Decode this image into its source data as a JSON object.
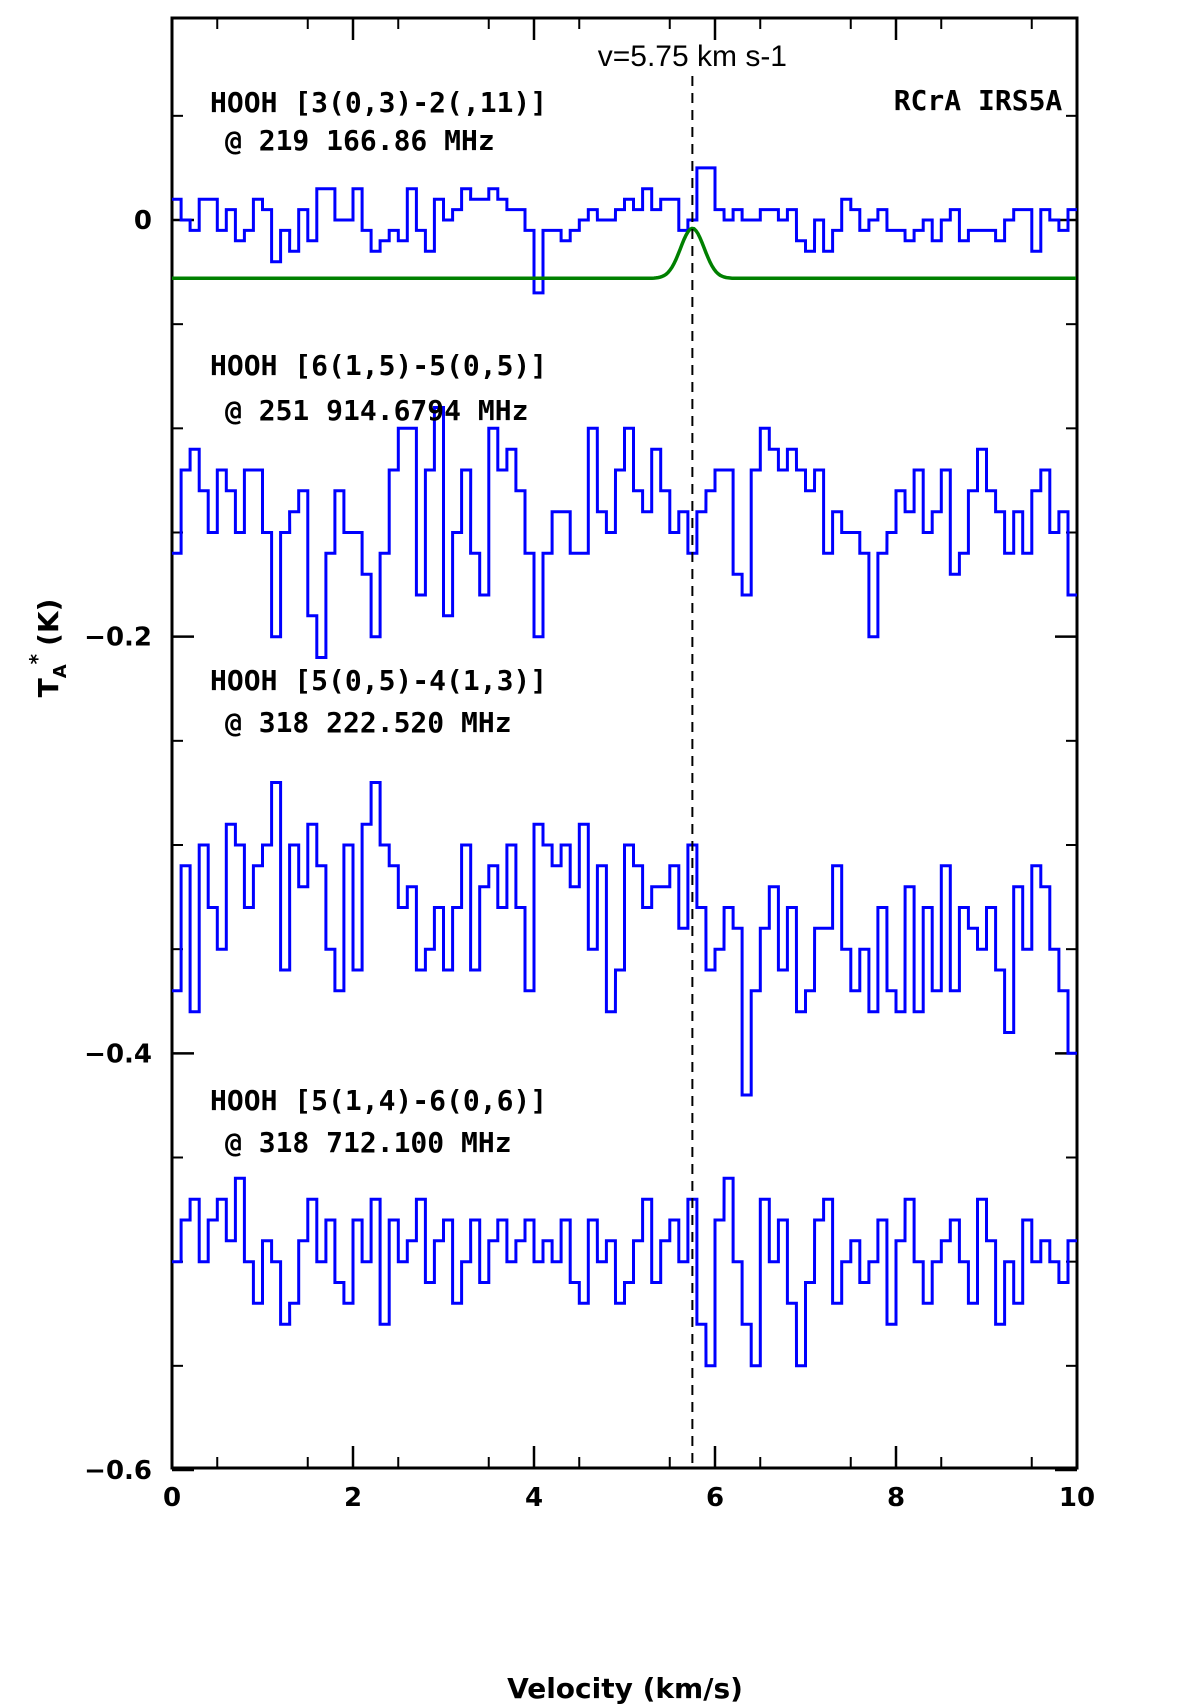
{
  "chart_data": {
    "type": "line",
    "title": "",
    "xlabel": "Velocity (km/s)",
    "ylabel": "T_A* (K)",
    "ylabel_main": "T",
    "ylabel_sub": "A",
    "ylabel_sup": "*",
    "ylabel_unit": "(K)",
    "xlim": [
      0,
      10
    ],
    "ylim": [
      -0.6,
      0.1
    ],
    "xticks": [
      0,
      2,
      4,
      6,
      8,
      10
    ],
    "xtick_labels": [
      "0",
      "2",
      "4",
      "6",
      "8",
      "10"
    ],
    "yticks": [
      0,
      -0.2,
      -0.4,
      -0.6
    ],
    "ytick_labels": [
      "0",
      "−0.2",
      "−0.4",
      "−0.6"
    ],
    "grid": false,
    "legend": "none",
    "source": "RCrA IRS5A",
    "vline": {
      "x": 5.75,
      "label": "v=5.75 km s-1"
    },
    "channel_width_kms": 0.1,
    "series": [
      {
        "label_line1": "HOOH [3(0,3)-2(,11)]",
        "label_line2": "@ 219 166.86 MHz",
        "color": "#0000ff",
        "x_start": 0.05,
        "y": [
          0.01,
          0.0,
          -0.005,
          0.01,
          0.01,
          -0.005,
          0.005,
          -0.01,
          -0.005,
          0.01,
          0.005,
          -0.02,
          -0.005,
          -0.015,
          0.005,
          -0.01,
          0.015,
          0.015,
          0.0,
          0.0,
          0.015,
          -0.005,
          -0.015,
          -0.01,
          -0.005,
          -0.01,
          0.015,
          -0.005,
          -0.015,
          0.01,
          0.0,
          0.005,
          0.015,
          0.01,
          0.01,
          0.015,
          0.01,
          0.005,
          0.005,
          -0.005,
          -0.035,
          -0.005,
          -0.005,
          -0.01,
          -0.005,
          0.0,
          0.005,
          0.0,
          0.0,
          0.005,
          0.01,
          0.005,
          0.015,
          0.005,
          0.01,
          0.01,
          -0.005,
          0.0,
          0.025,
          0.025,
          0.005,
          0.0,
          0.005,
          0.0,
          0.0,
          0.005,
          0.005,
          0.0,
          0.005,
          -0.01,
          -0.015,
          0.0,
          -0.015,
          -0.005,
          0.01,
          0.005,
          -0.005,
          0.0,
          0.005,
          -0.005,
          -0.005,
          -0.01,
          -0.005,
          0.0,
          -0.01,
          0.0,
          0.005,
          -0.01,
          -0.005,
          -0.005,
          -0.005,
          -0.01,
          0.0,
          0.005,
          0.005,
          -0.015,
          0.005,
          0.0,
          -0.005,
          0.005
        ]
      },
      {
        "label_line1": "HOOH [6(1,5)-5(0,5)]",
        "label_line2": "@ 251 914.6794 MHz",
        "color": "#0000ff",
        "x_start": 0.05,
        "y": [
          -0.16,
          -0.12,
          -0.11,
          -0.13,
          -0.15,
          -0.12,
          -0.13,
          -0.15,
          -0.12,
          -0.12,
          -0.15,
          -0.2,
          -0.15,
          -0.14,
          -0.13,
          -0.19,
          -0.21,
          -0.16,
          -0.13,
          -0.15,
          -0.15,
          -0.17,
          -0.2,
          -0.16,
          -0.12,
          -0.1,
          -0.1,
          -0.18,
          -0.12,
          -0.09,
          -0.19,
          -0.15,
          -0.12,
          -0.16,
          -0.18,
          -0.1,
          -0.12,
          -0.11,
          -0.13,
          -0.16,
          -0.2,
          -0.16,
          -0.14,
          -0.14,
          -0.16,
          -0.16,
          -0.1,
          -0.14,
          -0.15,
          -0.12,
          -0.1,
          -0.13,
          -0.14,
          -0.11,
          -0.13,
          -0.15,
          -0.14,
          -0.16,
          -0.14,
          -0.13,
          -0.12,
          -0.12,
          -0.17,
          -0.18,
          -0.12,
          -0.1,
          -0.11,
          -0.12,
          -0.11,
          -0.12,
          -0.13,
          -0.12,
          -0.16,
          -0.14,
          -0.15,
          -0.15,
          -0.16,
          -0.2,
          -0.16,
          -0.15,
          -0.13,
          -0.14,
          -0.12,
          -0.15,
          -0.14,
          -0.12,
          -0.17,
          -0.16,
          -0.13,
          -0.11,
          -0.13,
          -0.14,
          -0.16,
          -0.14,
          -0.16,
          -0.13,
          -0.12,
          -0.15,
          -0.14,
          -0.18
        ]
      },
      {
        "label_line1": "HOOH [5(0,5)-4(1,3)]",
        "label_line2": "@ 318 222.520 MHz",
        "color": "#0000ff",
        "x_start": 0.05,
        "y": [
          -0.37,
          -0.31,
          -0.38,
          -0.3,
          -0.33,
          -0.35,
          -0.29,
          -0.3,
          -0.33,
          -0.31,
          -0.3,
          -0.27,
          -0.36,
          -0.3,
          -0.32,
          -0.29,
          -0.31,
          -0.35,
          -0.37,
          -0.3,
          -0.36,
          -0.29,
          -0.27,
          -0.3,
          -0.31,
          -0.33,
          -0.32,
          -0.36,
          -0.35,
          -0.33,
          -0.36,
          -0.33,
          -0.3,
          -0.36,
          -0.32,
          -0.31,
          -0.33,
          -0.3,
          -0.33,
          -0.37,
          -0.29,
          -0.3,
          -0.31,
          -0.3,
          -0.32,
          -0.29,
          -0.35,
          -0.31,
          -0.38,
          -0.36,
          -0.3,
          -0.31,
          -0.33,
          -0.32,
          -0.32,
          -0.31,
          -0.34,
          -0.3,
          -0.33,
          -0.36,
          -0.35,
          -0.33,
          -0.34,
          -0.42,
          -0.37,
          -0.34,
          -0.32,
          -0.36,
          -0.33,
          -0.38,
          -0.37,
          -0.34,
          -0.34,
          -0.31,
          -0.35,
          -0.37,
          -0.35,
          -0.38,
          -0.33,
          -0.37,
          -0.38,
          -0.32,
          -0.38,
          -0.33,
          -0.37,
          -0.31,
          -0.37,
          -0.33,
          -0.34,
          -0.35,
          -0.33,
          -0.36,
          -0.39,
          -0.32,
          -0.35,
          -0.31,
          -0.32,
          -0.35,
          -0.37,
          -0.4
        ]
      },
      {
        "label_line1": "HOOH [5(1,4)-6(0,6)]",
        "label_line2": "@ 318 712.100 MHz",
        "color": "#0000ff",
        "x_start": 0.05,
        "y": [
          -0.5,
          -0.48,
          -0.47,
          -0.5,
          -0.48,
          -0.47,
          -0.49,
          -0.46,
          -0.5,
          -0.52,
          -0.49,
          -0.5,
          -0.53,
          -0.52,
          -0.49,
          -0.47,
          -0.5,
          -0.48,
          -0.51,
          -0.52,
          -0.48,
          -0.5,
          -0.47,
          -0.53,
          -0.48,
          -0.5,
          -0.49,
          -0.47,
          -0.51,
          -0.49,
          -0.48,
          -0.52,
          -0.5,
          -0.48,
          -0.51,
          -0.49,
          -0.48,
          -0.5,
          -0.49,
          -0.48,
          -0.5,
          -0.49,
          -0.5,
          -0.48,
          -0.51,
          -0.52,
          -0.48,
          -0.5,
          -0.49,
          -0.52,
          -0.51,
          -0.49,
          -0.47,
          -0.51,
          -0.49,
          -0.48,
          -0.5,
          -0.47,
          -0.53,
          -0.55,
          -0.48,
          -0.46,
          -0.5,
          -0.53,
          -0.55,
          -0.47,
          -0.5,
          -0.48,
          -0.52,
          -0.55,
          -0.51,
          -0.48,
          -0.47,
          -0.52,
          -0.5,
          -0.49,
          -0.51,
          -0.5,
          -0.48,
          -0.53,
          -0.49,
          -0.47,
          -0.5,
          -0.52,
          -0.5,
          -0.49,
          -0.48,
          -0.5,
          -0.52,
          -0.47,
          -0.49,
          -0.53,
          -0.5,
          -0.52,
          -0.48,
          -0.5,
          -0.49,
          -0.5,
          -0.51,
          -0.49
        ]
      }
    ],
    "fit": {
      "color": "#008000",
      "baseline": -0.028,
      "amplitude": 0.024,
      "center": 5.75,
      "sigma": 0.13
    }
  }
}
